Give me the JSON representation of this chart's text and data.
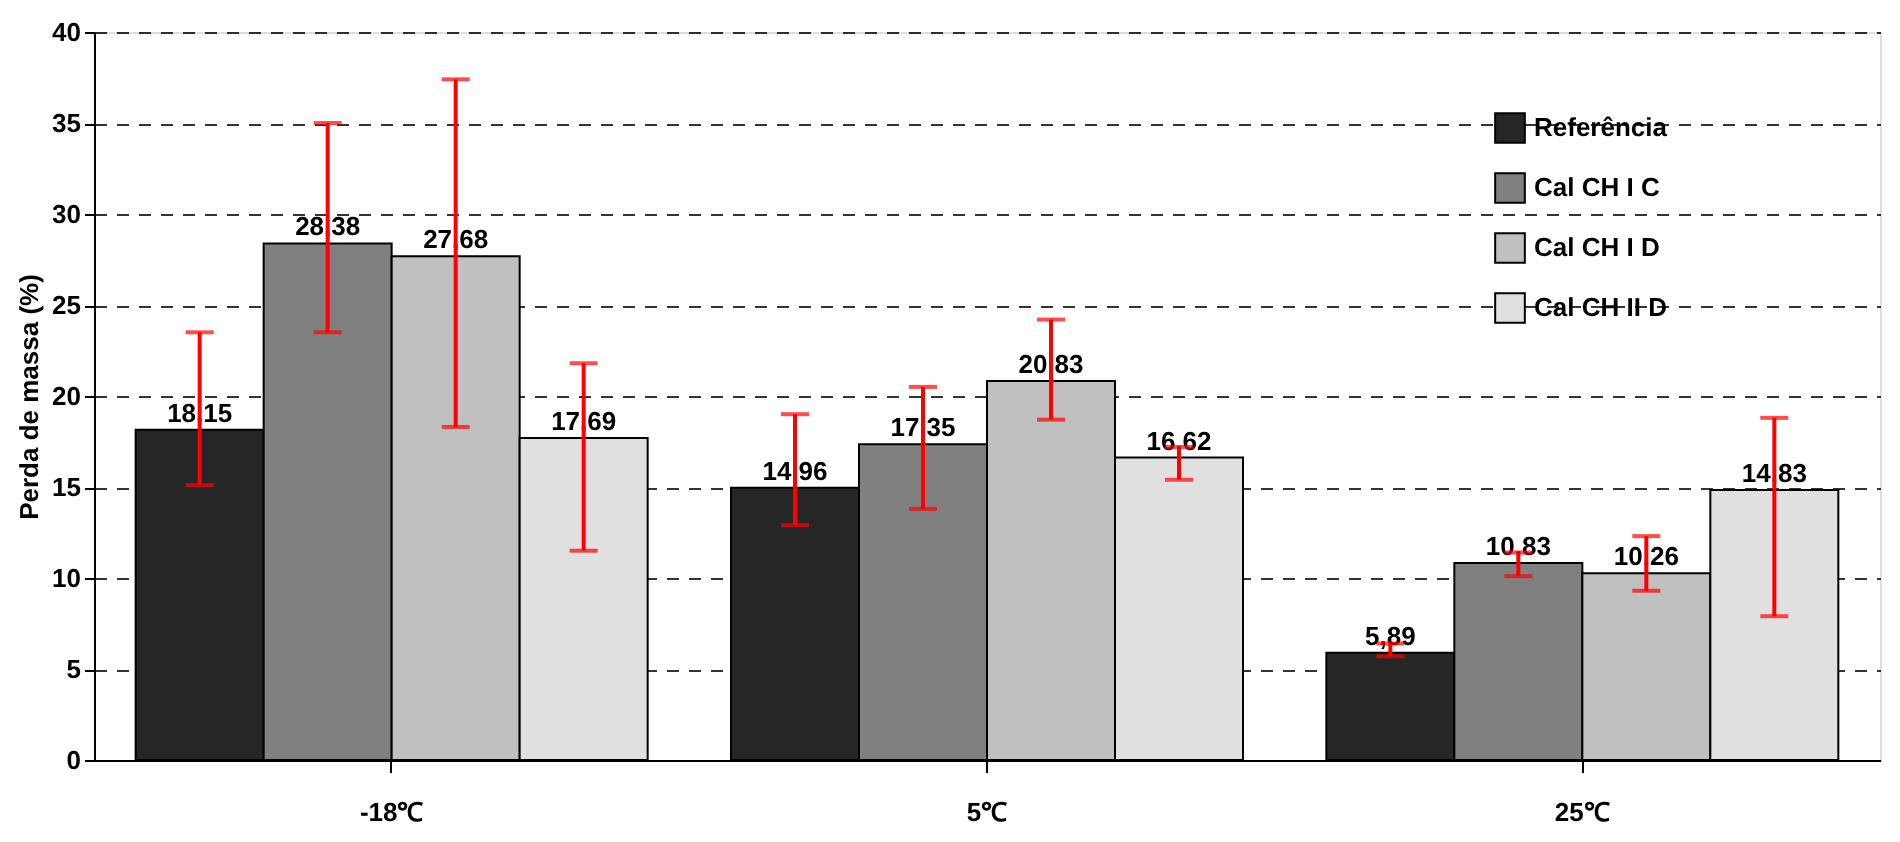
{
  "chart_data": {
    "type": "bar",
    "ylabel": "Perda de massa (%)",
    "categories": [
      "-18℃",
      "5℃",
      "25℃"
    ],
    "series": [
      {
        "name": "Referência",
        "color": "#262626",
        "values": [
          18.15,
          14.96,
          5.89
        ],
        "value_labels": [
          "18,15",
          "14,96",
          "5,89"
        ],
        "errors": [
          [
            15.1,
            23.5
          ],
          [
            12.9,
            19.0
          ],
          [
            5.7,
            6.4
          ]
        ]
      },
      {
        "name": "Cal CH I C",
        "color": "#808080",
        "values": [
          28.38,
          17.35,
          10.83
        ],
        "value_labels": [
          "28,38",
          "17,35",
          "10,83"
        ],
        "errors": [
          [
            23.5,
            35.0
          ],
          [
            13.8,
            20.5
          ],
          [
            10.1,
            11.4
          ]
        ]
      },
      {
        "name": "Cal CH I D",
        "color": "#c0c0c0",
        "values": [
          27.68,
          20.83,
          10.26
        ],
        "value_labels": [
          "27,68",
          "20,83",
          "10,26"
        ],
        "errors": [
          [
            18.3,
            37.4
          ],
          [
            18.7,
            24.2
          ],
          [
            9.3,
            12.3
          ]
        ]
      },
      {
        "name": "Cal CH II D",
        "color": "#e0e0e0",
        "values": [
          17.69,
          16.62,
          14.83
        ],
        "value_labels": [
          "17,69",
          "16,62",
          "14,83"
        ],
        "errors": [
          [
            11.5,
            21.8
          ],
          [
            15.4,
            17.2
          ],
          [
            7.9,
            18.8
          ]
        ]
      }
    ],
    "ylim": [
      0,
      40
    ],
    "yticks": [
      0,
      5,
      10,
      15,
      20,
      25,
      30,
      35,
      40
    ],
    "grid": "y",
    "legend": "right"
  }
}
